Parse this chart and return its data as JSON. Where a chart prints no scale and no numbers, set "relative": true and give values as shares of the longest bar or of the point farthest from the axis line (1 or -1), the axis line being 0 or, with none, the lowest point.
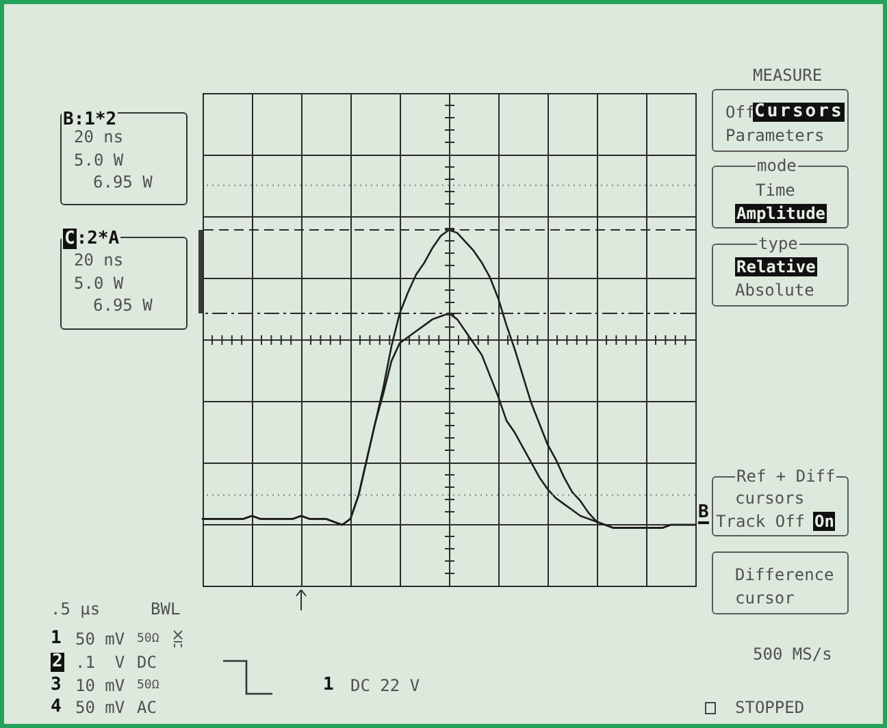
{
  "chart_data": {
    "type": "line",
    "relative": true,
    "grid": true,
    "categories": [
      null,
      null,
      null,
      null,
      null,
      null,
      null,
      null,
      null,
      null,
      null,
      null,
      null,
      null,
      null,
      null,
      null,
      null,
      null,
      null,
      null,
      null,
      null,
      null,
      null,
      null,
      null,
      null,
      null,
      null,
      null,
      null,
      null,
      null,
      null,
      null,
      null,
      null,
      null,
      null,
      null,
      null,
      null,
      null,
      null,
      null,
      null,
      null,
      null,
      null,
      null,
      null,
      null,
      null,
      null,
      null,
      null,
      null,
      null,
      null,
      null
    ],
    "series": [
      {
        "color": "#1e1e1e",
        "values": [
          0.03,
          0.03,
          0.03,
          0.03,
          0.03,
          0.03,
          0.04,
          0.03,
          0.03,
          0.03,
          0.03,
          0.03,
          0.04,
          0.03,
          0.03,
          0.03,
          0.02,
          0.01,
          0.03,
          0.11,
          0.23,
          0.35,
          0.47,
          0.61,
          0.72,
          0.79,
          0.85,
          0.89,
          0.94,
          0.98,
          1,
          0.99,
          0.96,
          0.93,
          0.89,
          0.84,
          0.77,
          0.68,
          0.6,
          0.51,
          0.42,
          0.35,
          0.28,
          0.23,
          0.17,
          0.12,
          0.09,
          0.05,
          0.02,
          0.01,
          0,
          0,
          0,
          0,
          0,
          0,
          0,
          0.01,
          0.01,
          0.01,
          0.01
        ]
      },
      {
        "color": "#1e1e1e",
        "values": [
          0.03,
          0.03,
          0.03,
          0.03,
          0.03,
          0.03,
          0.04,
          0.03,
          0.03,
          0.03,
          0.03,
          0.03,
          0.04,
          0.03,
          0.03,
          0.03,
          0.02,
          0.01,
          0.03,
          0.11,
          0.23,
          0.35,
          0.45,
          0.56,
          0.62,
          0.64,
          0.66,
          0.68,
          0.7,
          0.71,
          0.72,
          0.7,
          0.66,
          0.62,
          0.58,
          0.51,
          0.44,
          0.36,
          0.32,
          0.27,
          0.22,
          0.17,
          0.13,
          0.1,
          0.08,
          0.06,
          0.04,
          0.03,
          0.02,
          0.01,
          0,
          0,
          0,
          0,
          0,
          0,
          0,
          0.01,
          0.01,
          0.01,
          0.01
        ]
      }
    ],
    "ref_lines": [
      {
        "axis": "y",
        "value": 1,
        "line_style": "dashed",
        "color": "#2a2a2a"
      },
      {
        "axis": "y",
        "value": 0.72,
        "line_style": "dashdot",
        "color": "#2a2a2a"
      },
      {
        "axis": "y",
        "value": 1.15,
        "line_style": "dotted",
        "color": "#7d857d"
      },
      {
        "axis": "y",
        "value": 0.11,
        "line_style": "dotted",
        "color": "#7d857d"
      }
    ],
    "annotations": [
      "B:1*2",
      "20 ns",
      "5.0 W",
      "6.95 W",
      "C:2*A",
      "20 ns",
      "5.0 W",
      "6.95 W",
      "MEASURE",
      "Off",
      "Cursors",
      "Parameters",
      "mode",
      "Time",
      "Amplitude",
      "type",
      "Relative",
      "Absolute",
      "Ref + Diff",
      "cursors",
      "Track Off",
      "On",
      "Difference",
      "cursor",
      "500 MS/s",
      "STOPPED",
      ".5 µs",
      "BWL",
      "1",
      "50 mV",
      "50Ω",
      "2",
      ".1  V",
      "DC",
      "3",
      "10 mV",
      "50Ω",
      "4",
      "50 mV",
      "AC",
      "1",
      "DC 22 V",
      "B"
    ]
  }
}
